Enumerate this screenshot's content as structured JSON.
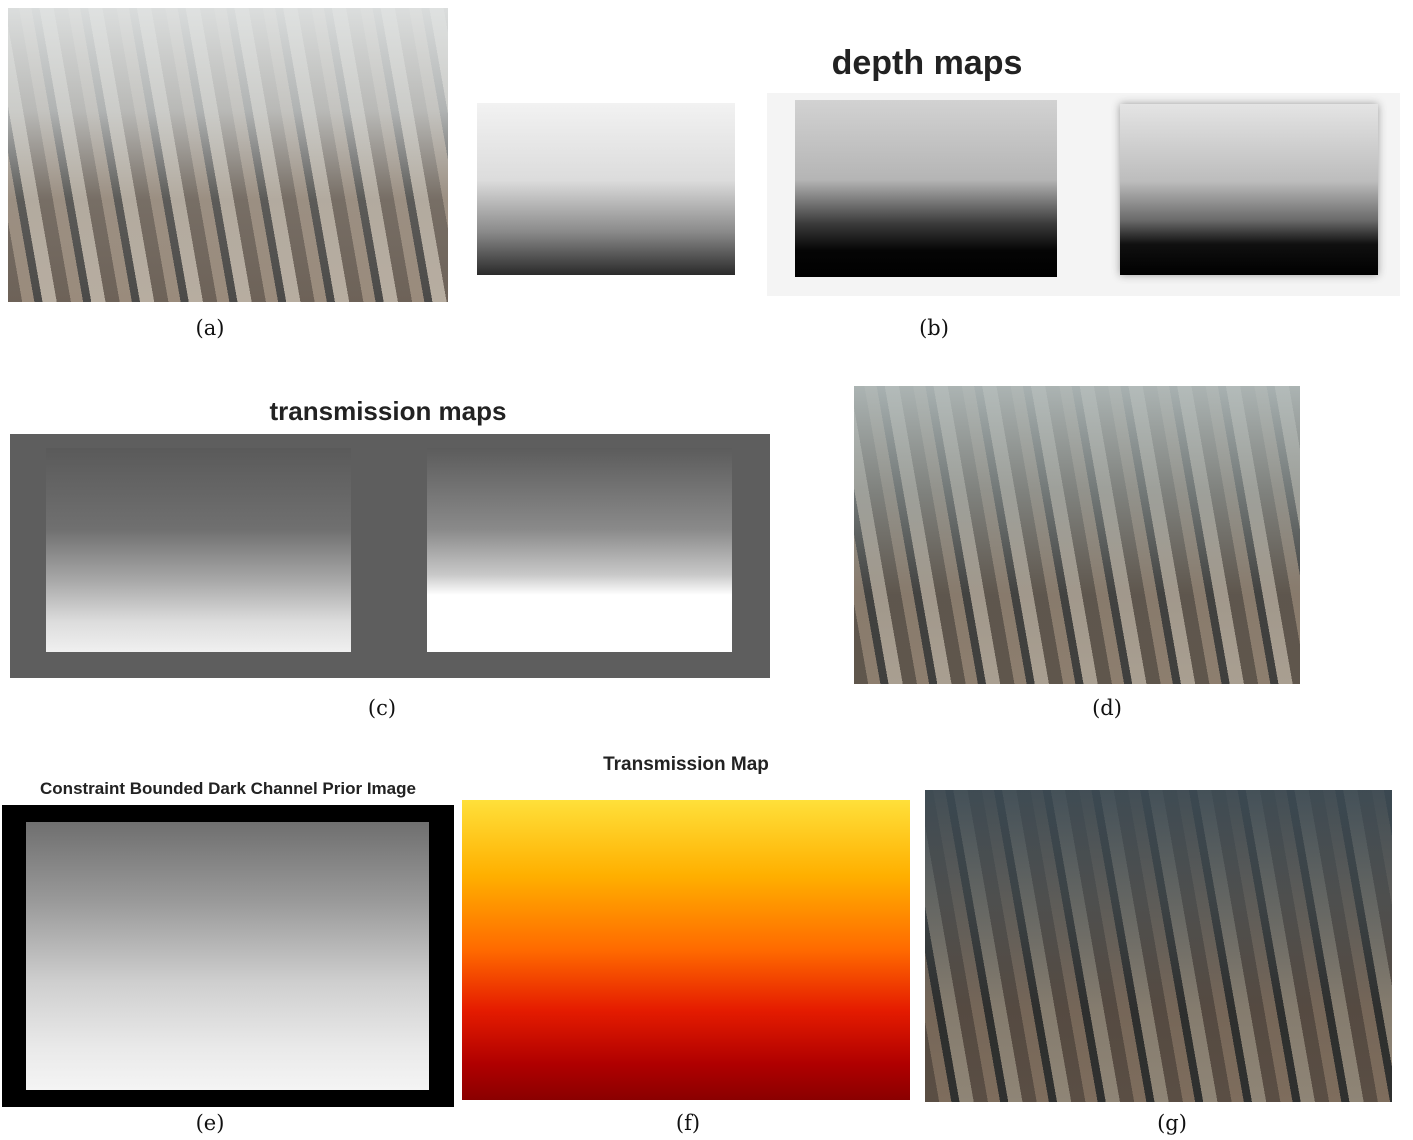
{
  "panels": [
    {
      "caption": "(a)"
    },
    {
      "caption": "(b)",
      "title": "depth maps"
    },
    {
      "caption": "(c)",
      "title": "transmission maps"
    },
    {
      "caption": "(d)"
    },
    {
      "caption": "(e)",
      "title": "Constraint Bounded Dark Channel Prior Image"
    },
    {
      "caption": "(f)",
      "title": "Transmission Map"
    },
    {
      "caption": "(g)"
    }
  ]
}
